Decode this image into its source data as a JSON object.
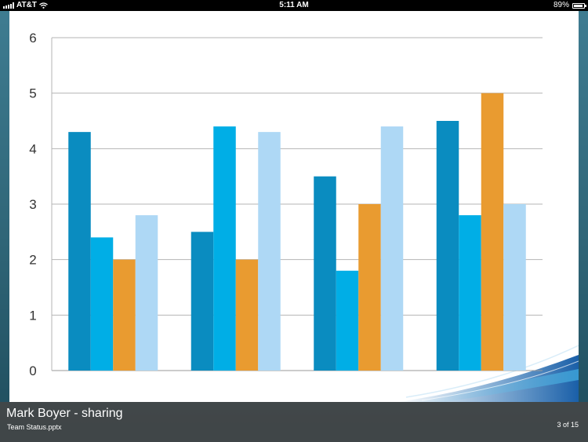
{
  "status_bar": {
    "carrier": "AT&T",
    "time": "5:11 AM",
    "battery": "89%",
    "battery_level": 0.89,
    "icons": [
      "signal-icon",
      "wifi-icon",
      "battery-icon"
    ]
  },
  "chart_data": {
    "type": "bar",
    "categories": [
      "",
      "",
      "",
      ""
    ],
    "series": [
      {
        "values": [
          4.3,
          2.5,
          3.5,
          4.5
        ],
        "color": "#0a8cc0"
      },
      {
        "values": [
          2.4,
          4.4,
          1.8,
          2.8
        ],
        "color": "#00aee6"
      },
      {
        "values": [
          2.0,
          2.0,
          3.0,
          5.0
        ],
        "color": "#e99b30"
      },
      {
        "values": [
          2.8,
          4.3,
          4.4,
          3.0
        ],
        "color": "#aed8f5"
      }
    ],
    "yticks": [
      "0",
      "1",
      "2",
      "3",
      "4",
      "5",
      "6"
    ],
    "ylim": [
      0,
      6
    ],
    "grid": true,
    "title": "",
    "xlabel": "",
    "ylabel": ""
  },
  "info_bar": {
    "sharer": "Mark Boyer - sharing",
    "filename": "Team Status.pptx",
    "page_count": "3 of 15"
  }
}
